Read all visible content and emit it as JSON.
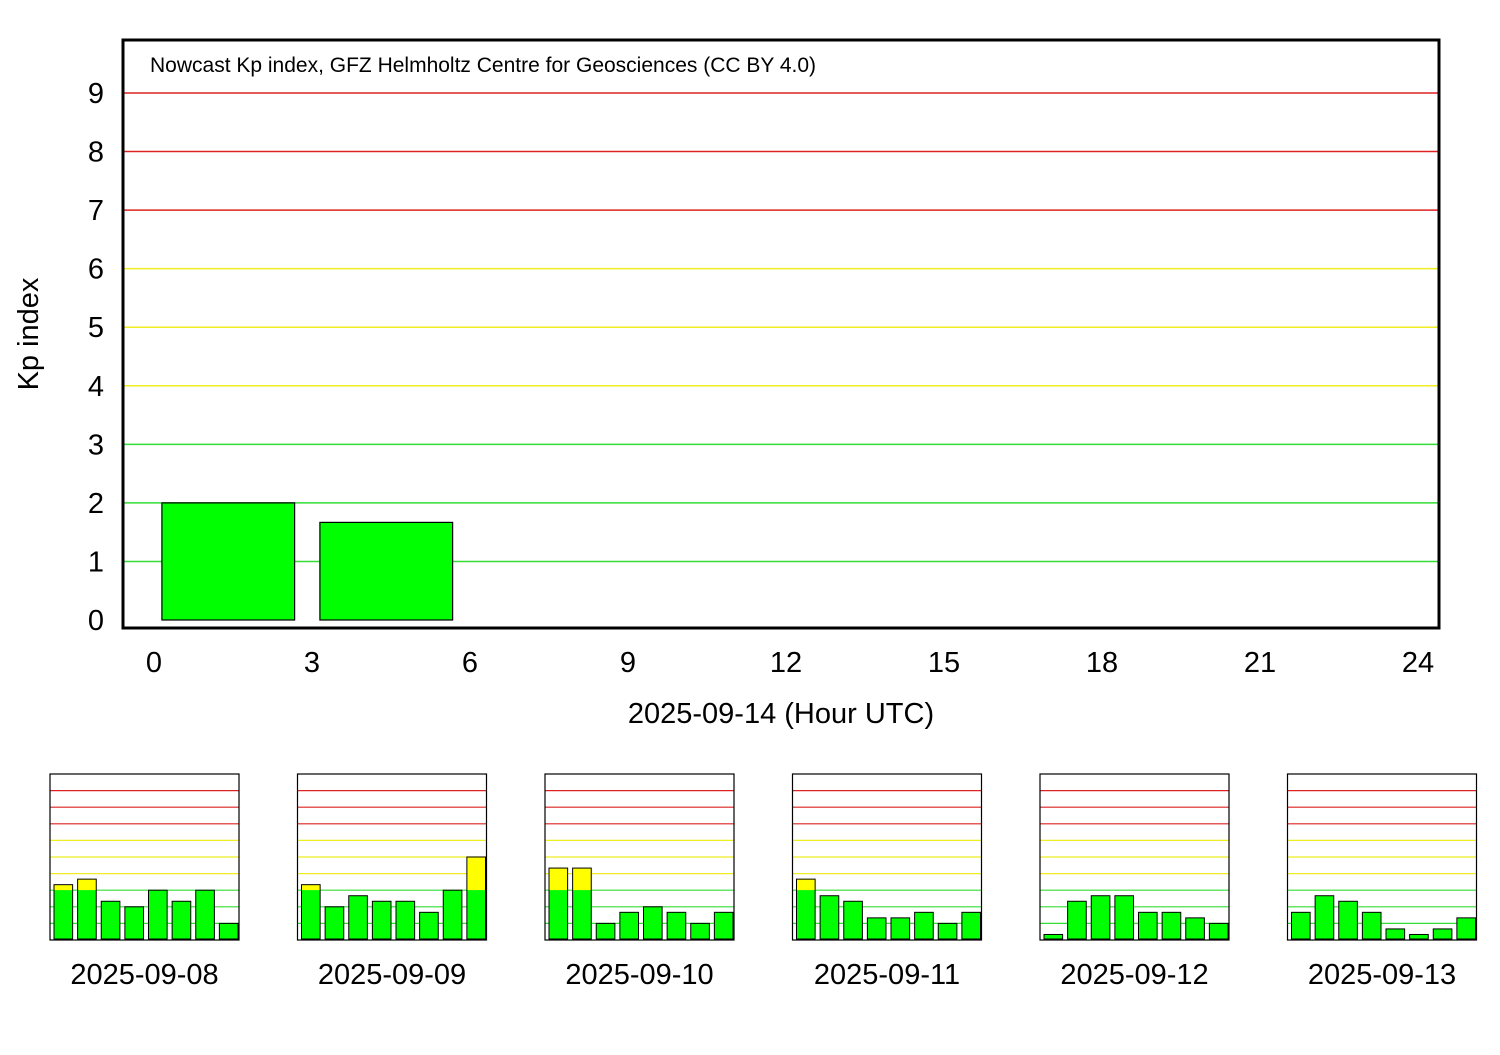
{
  "colors": {
    "green": "#00ff00",
    "yellow": "#ffff00",
    "red": "#e02020",
    "line_green": "#33dd33",
    "line_yellow": "#eeee22",
    "line_red": "#dd2222"
  },
  "chart_data": [
    {
      "type": "bar",
      "title": "Nowcast Kp index, GFZ Helmholtz Centre for Geosciences (CC BY 4.0)",
      "xlabel": "2025-09-14 (Hour UTC)",
      "ylabel": "Kp index",
      "xlim": [
        0,
        24
      ],
      "ylim": [
        0,
        9
      ],
      "x_ticks": [
        "0",
        "3",
        "6",
        "9",
        "12",
        "15",
        "18",
        "21",
        "24"
      ],
      "y_ticks": [
        "0",
        "1",
        "2",
        "3",
        "4",
        "5",
        "6",
        "7",
        "8",
        "9"
      ],
      "grid": "horizontal, colored by activity level",
      "x": [
        0,
        3
      ],
      "values": [
        2.0,
        1.667
      ]
    },
    {
      "type": "bar",
      "label": "2025-09-08",
      "x": [
        0,
        3,
        6,
        9,
        12,
        15,
        18,
        21
      ],
      "values": [
        3.333,
        3.667,
        2.333,
        2.0,
        3.0,
        2.333,
        3.0,
        1.0
      ]
    },
    {
      "type": "bar",
      "label": "2025-09-09",
      "x": [
        0,
        3,
        6,
        9,
        12,
        15,
        18,
        21
      ],
      "values": [
        3.333,
        2.0,
        2.667,
        2.333,
        2.333,
        1.667,
        3.0,
        5.0
      ]
    },
    {
      "type": "bar",
      "label": "2025-09-10",
      "x": [
        0,
        3,
        6,
        9,
        12,
        15,
        18,
        21
      ],
      "values": [
        4.333,
        4.333,
        1.0,
        1.667,
        2.0,
        1.667,
        1.0,
        1.667
      ]
    },
    {
      "type": "bar",
      "label": "2025-09-11",
      "x": [
        0,
        3,
        6,
        9,
        12,
        15,
        18,
        21
      ],
      "values": [
        3.667,
        2.667,
        2.333,
        1.333,
        1.333,
        1.667,
        1.0,
        1.667
      ]
    },
    {
      "type": "bar",
      "label": "2025-09-12",
      "x": [
        0,
        3,
        6,
        9,
        12,
        15,
        18,
        21
      ],
      "values": [
        0.333,
        2.333,
        2.667,
        2.667,
        1.667,
        1.667,
        1.333,
        1.0
      ]
    },
    {
      "type": "bar",
      "label": "2025-09-13",
      "x": [
        0,
        3,
        6,
        9,
        12,
        15,
        18,
        21
      ],
      "values": [
        1.667,
        2.667,
        2.333,
        1.667,
        0.667,
        0.333,
        0.667,
        1.333
      ]
    }
  ]
}
